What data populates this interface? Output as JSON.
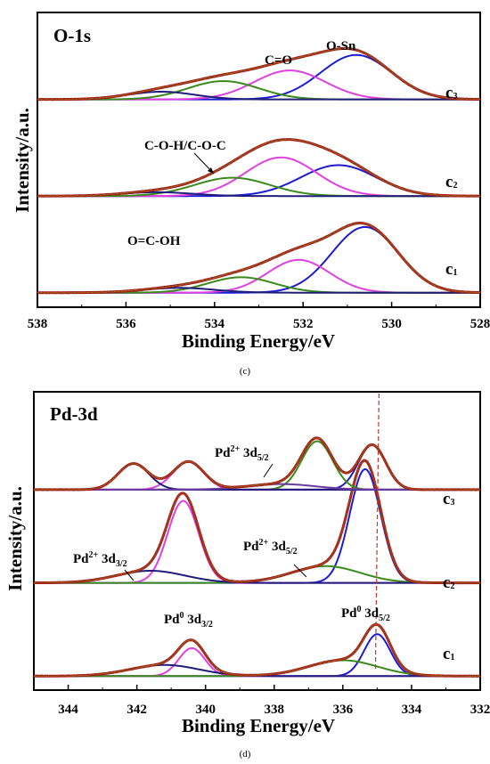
{
  "chart_data": [
    {
      "type": "line",
      "title": "O-1s",
      "xlabel": "Binding Energy/eV",
      "ylabel": "Intensity/a.u.",
      "caption": "(c)",
      "xlim": [
        538,
        528
      ],
      "x_ticks": [
        "538",
        "536",
        "534",
        "532",
        "530",
        "528"
      ],
      "x_tick_values": [
        538,
        536,
        534,
        532,
        530,
        528
      ],
      "offsets": [
        0,
        1,
        2
      ],
      "y_range": [
        -0.15,
        2.9
      ],
      "spectra": [
        {
          "name": "c1",
          "components": [
            {
              "center": 530.6,
              "height": 0.68,
              "width": 0.75,
              "color": "#1c1cd0"
            },
            {
              "center": 532.1,
              "height": 0.34,
              "width": 0.7,
              "color": "#e040e0"
            },
            {
              "center": 533.4,
              "height": 0.16,
              "width": 0.75,
              "color": "#3a8a1c"
            },
            {
              "center": 534.8,
              "height": 0.05,
              "width": 0.8,
              "color": "#1e1e7a"
            }
          ]
        },
        {
          "name": "c2",
          "components": [
            {
              "center": 531.2,
              "height": 0.32,
              "width": 0.85,
              "color": "#1c1cd0"
            },
            {
              "center": 532.5,
              "height": 0.4,
              "width": 0.8,
              "color": "#e040e0"
            },
            {
              "center": 533.6,
              "height": 0.19,
              "width": 0.85,
              "color": "#3a8a1c"
            },
            {
              "center": 535.3,
              "height": 0.04,
              "width": 0.8,
              "color": "#1e1e7a"
            }
          ]
        },
        {
          "name": "c3",
          "components": [
            {
              "center": 530.8,
              "height": 0.46,
              "width": 0.8,
              "color": "#1c1cd0"
            },
            {
              "center": 532.3,
              "height": 0.3,
              "width": 0.8,
              "color": "#e040e0"
            },
            {
              "center": 533.8,
              "height": 0.19,
              "width": 0.8,
              "color": "#3a8a1c"
            },
            {
              "center": 535.2,
              "height": 0.08,
              "width": 0.75,
              "color": "#1e1e7a"
            }
          ]
        }
      ],
      "annotations": [
        {
          "text": "C=O"
        },
        {
          "text": "O-Sn"
        },
        {
          "text": "C-O-H/C-O-C"
        },
        {
          "text": "O=C-OH"
        }
      ],
      "curve_labels": [
        "c",
        "c",
        "c"
      ],
      "curve_label_subs": [
        "3",
        "2",
        "1"
      ]
    },
    {
      "type": "line",
      "title": "Pd-3d",
      "xlabel": "Binding Energy/eV",
      "ylabel": "Intensity/a.u.",
      "caption": "(d)",
      "xlim": [
        345,
        332
      ],
      "x_ticks": [
        "344",
        "342",
        "340",
        "338",
        "336",
        "334",
        "332"
      ],
      "x_tick_values": [
        344,
        342,
        340,
        338,
        336,
        334,
        332
      ],
      "dashed_line_x": 335,
      "offsets": [
        0,
        1,
        2
      ],
      "y_range": [
        -0.15,
        3.05
      ],
      "spectra": [
        {
          "name": "c1",
          "components": [
            {
              "center": 335.0,
              "height": 0.45,
              "width": 0.38,
              "color": "#1c1cd0"
            },
            {
              "center": 340.4,
              "height": 0.3,
              "width": 0.38,
              "color": "#e040e0"
            },
            {
              "center": 336.0,
              "height": 0.17,
              "width": 1.0,
              "color": "#3a8a1c"
            },
            {
              "center": 341.2,
              "height": 0.12,
              "width": 1.0,
              "color": "#1e1e7a"
            }
          ]
        },
        {
          "name": "c2",
          "components": [
            {
              "center": 335.35,
              "height": 1.22,
              "width": 0.45,
              "color": "#1c1cd0"
            },
            {
              "center": 340.65,
              "height": 0.88,
              "width": 0.45,
              "color": "#e040e0"
            },
            {
              "center": 336.5,
              "height": 0.18,
              "width": 1.0,
              "color": "#3a8a1c"
            },
            {
              "center": 341.6,
              "height": 0.13,
              "width": 1.0,
              "color": "#1e1e7a"
            }
          ]
        },
        {
          "name": "c3",
          "components": [
            {
              "center": 335.15,
              "height": 0.48,
              "width": 0.4,
              "color": "#1c1cd0"
            },
            {
              "center": 336.75,
              "height": 0.52,
              "width": 0.45,
              "color": "#3a8a1c"
            },
            {
              "center": 340.5,
              "height": 0.3,
              "width": 0.45,
              "color": "#e040e0"
            },
            {
              "center": 342.1,
              "height": 0.28,
              "width": 0.45,
              "color": "#1e1e7a"
            },
            {
              "center": 337.8,
              "height": 0.06,
              "width": 1.0,
              "color": "#6a3aa0"
            }
          ]
        }
      ],
      "annotations": [
        {
          "text": "Pd",
          "sup": "2+",
          "suffix": " 3d",
          "sub": "5/2"
        },
        {
          "text": "Pd",
          "sup": "2+",
          "suffix": " 3d",
          "sub": "3/2"
        },
        {
          "text": "Pd",
          "sup": "2+",
          "suffix": " 3d",
          "sub": "5/2"
        },
        {
          "text": "Pd",
          "sup": "0",
          "suffix": " 3d",
          "sub": "3/2"
        },
        {
          "text": "Pd",
          "sup": "0",
          "suffix": " 3d",
          "sub": "5/2"
        }
      ],
      "curve_labels": [
        "c",
        "c",
        "c"
      ],
      "curve_label_subs": [
        "3",
        "2",
        "1"
      ]
    }
  ],
  "colors": {
    "envelope": "#b01414",
    "envelope_inner": "#e07000",
    "raw": "#3a3a3a",
    "dashed": "#c0392b",
    "axis": "#000000"
  }
}
